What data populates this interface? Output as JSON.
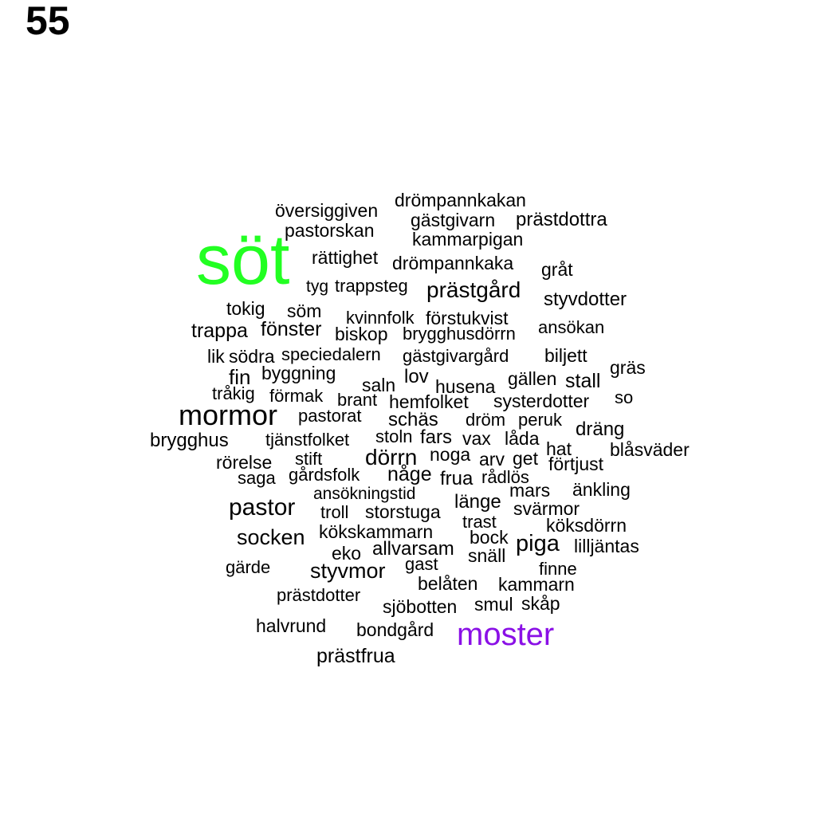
{
  "panel_number": "55",
  "colors": {
    "default": "#000000",
    "highlight_green": "#22ff22",
    "highlight_purple": "#8a10e6"
  },
  "words": [
    {
      "text": "söt",
      "color": "#22ff22"
    },
    {
      "text": "moster",
      "color": "#8a10e6"
    },
    {
      "text": "mormor"
    },
    {
      "text": "pastor"
    },
    {
      "text": "socken"
    },
    {
      "text": "styvmor"
    },
    {
      "text": "prästgård"
    },
    {
      "text": "dörrn"
    },
    {
      "text": "piga"
    },
    {
      "text": "drömpannkakan"
    },
    {
      "text": "översiggiven"
    },
    {
      "text": "gästgivarn"
    },
    {
      "text": "prästdottra"
    },
    {
      "text": "pastorskan"
    },
    {
      "text": "kammarpigan"
    },
    {
      "text": "rättighet"
    },
    {
      "text": "drömpannkaka"
    },
    {
      "text": "gråt"
    },
    {
      "text": "tyg"
    },
    {
      "text": "trappsteg"
    },
    {
      "text": "styvdotter"
    },
    {
      "text": "tokig"
    },
    {
      "text": "söm"
    },
    {
      "text": "kvinnfolk"
    },
    {
      "text": "förstukvist"
    },
    {
      "text": "trappa"
    },
    {
      "text": "fönster"
    },
    {
      "text": "biskop"
    },
    {
      "text": "brygghusdörrn"
    },
    {
      "text": "ansökan"
    },
    {
      "text": "lik"
    },
    {
      "text": "södra"
    },
    {
      "text": "speciedalern"
    },
    {
      "text": "gästgivargård"
    },
    {
      "text": "biljett"
    },
    {
      "text": "fin"
    },
    {
      "text": "byggning"
    },
    {
      "text": "saln"
    },
    {
      "text": "lov"
    },
    {
      "text": "husena"
    },
    {
      "text": "gällen"
    },
    {
      "text": "stall"
    },
    {
      "text": "gräs"
    },
    {
      "text": "tråkig"
    },
    {
      "text": "förmak"
    },
    {
      "text": "brant"
    },
    {
      "text": "hemfolket"
    },
    {
      "text": "systerdotter"
    },
    {
      "text": "so"
    },
    {
      "text": "pastorat"
    },
    {
      "text": "schäs"
    },
    {
      "text": "dröm"
    },
    {
      "text": "peruk"
    },
    {
      "text": "dräng"
    },
    {
      "text": "brygghus"
    },
    {
      "text": "tjänstfolket"
    },
    {
      "text": "stoln"
    },
    {
      "text": "fars"
    },
    {
      "text": "vax"
    },
    {
      "text": "låda"
    },
    {
      "text": "hat"
    },
    {
      "text": "blåsväder"
    },
    {
      "text": "rörelse"
    },
    {
      "text": "stift"
    },
    {
      "text": "noga"
    },
    {
      "text": "arv"
    },
    {
      "text": "get"
    },
    {
      "text": "förtjust"
    },
    {
      "text": "saga"
    },
    {
      "text": "gårdsfolk"
    },
    {
      "text": "någe"
    },
    {
      "text": "frua"
    },
    {
      "text": "rådlös"
    },
    {
      "text": "ansökningstid"
    },
    {
      "text": "mars"
    },
    {
      "text": "änkling"
    },
    {
      "text": "troll"
    },
    {
      "text": "storstuga"
    },
    {
      "text": "länge"
    },
    {
      "text": "svärmor"
    },
    {
      "text": "trast"
    },
    {
      "text": "köksdörrn"
    },
    {
      "text": "kökskammarn"
    },
    {
      "text": "bock"
    },
    {
      "text": "lilljäntas"
    },
    {
      "text": "eko"
    },
    {
      "text": "allvarsam"
    },
    {
      "text": "snäll"
    },
    {
      "text": "gärde"
    },
    {
      "text": "gast"
    },
    {
      "text": "finne"
    },
    {
      "text": "belåten"
    },
    {
      "text": "kammarn"
    },
    {
      "text": "prästdotter"
    },
    {
      "text": "sjöbotten"
    },
    {
      "text": "smul"
    },
    {
      "text": "skåp"
    },
    {
      "text": "halvrund"
    },
    {
      "text": "bondgård"
    },
    {
      "text": "prästfrua"
    }
  ]
}
